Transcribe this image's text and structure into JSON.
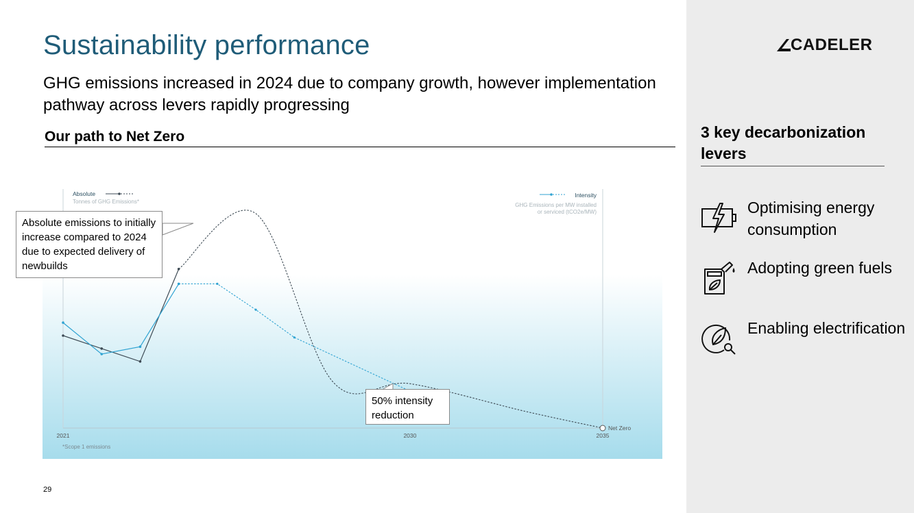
{
  "title": "Sustainability performance",
  "subtitle": "GHG emissions increased in 2024 due to company growth, however implementation pathway across levers rapidly progressing",
  "section_heading": "Our path to Net Zero",
  "page_number": "29",
  "colors": {
    "title": "#1f5c78",
    "absolute_series": "#3d4a54",
    "intensity_series": "#2fa3d2",
    "gradient_bottom": "#a6dcec"
  },
  "callouts": {
    "absolute": "Absolute emissions to initially increase compared to 2024 due to expected delivery of newbuilds",
    "intensity": "50% intensity reduction"
  },
  "chart_data": {
    "type": "line",
    "x_axis": {
      "tick_labels": [
        "2021",
        "2030",
        "2035"
      ],
      "range": [
        2021,
        2035
      ]
    },
    "y_axes": {
      "left": {
        "label": "Absolute",
        "sublabel": "Tonnes of GHG Emissions*"
      },
      "right": {
        "label": "Intensity",
        "sublabel": "GHG Emissions per MW installed or serviced (tCO2e/MW)"
      }
    },
    "scale": "relative, unlabeled values",
    "series": [
      {
        "name": "Absolute",
        "style": "solid actual, dashed projection",
        "x_actual": [
          2021,
          2022,
          2023,
          2024
        ],
        "y_actual": [
          50,
          43,
          36,
          86
        ],
        "x_projection": [
          2024,
          2026,
          2028,
          2030,
          2033,
          2035
        ],
        "y_projection": [
          86,
          116,
          25,
          24,
          9,
          0
        ]
      },
      {
        "name": "Intensity",
        "style": "solid actual, dashed projection",
        "x_actual": [
          2021,
          2022,
          2023,
          2024
        ],
        "y_actual": [
          57,
          40,
          44,
          78
        ],
        "x_projection": [
          2024,
          2025,
          2026,
          2027,
          2030
        ],
        "y_projection": [
          78,
          78,
          64,
          49,
          20
        ]
      }
    ],
    "end_marker": "Net Zero",
    "footnote": "*Scope 1 emissions"
  },
  "sidebar": {
    "logo": "CADELER",
    "heading": "3 key decarbonization levers",
    "levers": [
      {
        "icon": "battery-charge-icon",
        "label": "Optimising energy consumption"
      },
      {
        "icon": "fuel-can-leaf-icon",
        "label": "Adopting green fuels"
      },
      {
        "icon": "leaf-plug-icon",
        "label": "Enabling electrification"
      }
    ]
  }
}
